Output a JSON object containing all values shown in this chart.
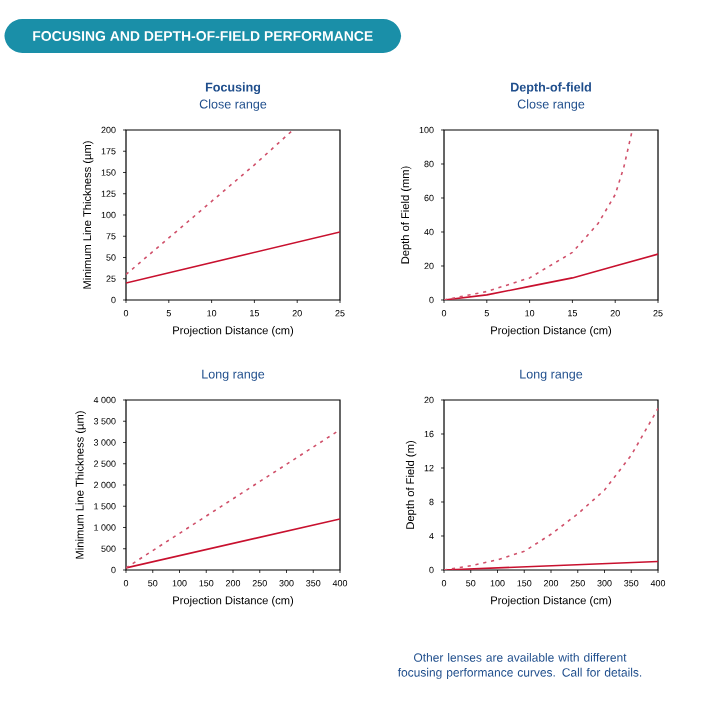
{
  "chart_data": [
    {
      "type": "line",
      "title": "Focusing",
      "subtitle": "Close range",
      "xlabel": "Projection Distance (cm)",
      "ylabel": "Minimum Line Thickness (µm)",
      "annotations": [
        "FOCUSING AND DEPTH-OF-FIELD PERFORMANCE"
      ],
      "xlim": [
        0,
        25
      ],
      "xticks": [
        0,
        5,
        10,
        15,
        20,
        25
      ],
      "ylim": [
        0,
        200
      ],
      "yticks": [
        0,
        25,
        50,
        75,
        100,
        125,
        150,
        175,
        200
      ],
      "series": [
        {
          "color": "#c8102e",
          "line_style": "solid",
          "x": [
            0,
            25
          ],
          "values": [
            20,
            80
          ]
        },
        {
          "color": "#d0506a",
          "line_style": "dashed",
          "x": [
            0,
            5,
            10,
            15,
            19.5
          ],
          "values": [
            30,
            73,
            116,
            159,
            200
          ]
        }
      ]
    },
    {
      "type": "line",
      "title": "Depth-of-field",
      "subtitle": "Close range",
      "xlabel": "Projection Distance (cm)",
      "ylabel": "Depth of Field (mm)",
      "xlim": [
        0,
        25
      ],
      "xticks": [
        0,
        5,
        10,
        15,
        20,
        25
      ],
      "ylim": [
        0,
        100
      ],
      "yticks": [
        0,
        20,
        40,
        60,
        80,
        100
      ],
      "series": [
        {
          "color": "#c8102e",
          "line_style": "solid",
          "x": [
            0,
            5,
            10,
            15,
            20,
            25
          ],
          "values": [
            0,
            3,
            8,
            13,
            20,
            27
          ]
        },
        {
          "color": "#d0506a",
          "line_style": "dashed",
          "x": [
            0,
            5,
            10,
            15,
            18,
            20,
            21,
            22
          ],
          "values": [
            0,
            5,
            13,
            28,
            45,
            62,
            78,
            100
          ]
        }
      ]
    },
    {
      "type": "line",
      "subtitle": "Long range",
      "xlabel": "Projection Distance (cm)",
      "ylabel": "Minimum Line Thickness (µm)",
      "xlim": [
        0,
        400
      ],
      "xticks": [
        0,
        50,
        100,
        150,
        200,
        250,
        300,
        350,
        400
      ],
      "ylim": [
        0,
        4000
      ],
      "yticks": [
        0,
        500,
        {
          "value": 1000,
          "label": "1 000"
        },
        {
          "value": 1500,
          "label": "1 500"
        },
        {
          "value": 2000,
          "label": "2 000"
        },
        {
          "value": 2500,
          "label": "2 500"
        },
        {
          "value": 3000,
          "label": "3 000"
        },
        {
          "value": 3500,
          "label": "3 500"
        },
        {
          "value": 4000,
          "label": "4 000"
        }
      ],
      "series": [
        {
          "color": "#c8102e",
          "line_style": "solid",
          "x": [
            0,
            400
          ],
          "values": [
            50,
            1200
          ]
        },
        {
          "color": "#d0506a",
          "line_style": "dashed",
          "x": [
            0,
            400
          ],
          "values": [
            50,
            3300
          ]
        }
      ]
    },
    {
      "type": "line",
      "subtitle": "Long range",
      "xlabel": "Projection Distance (cm)",
      "ylabel": "Depth of Field (m)",
      "annotations": [
        "Other lenses are available with different focusing performance curves. Call for details."
      ],
      "xlim": [
        0,
        400
      ],
      "xticks": [
        0,
        50,
        100,
        150,
        200,
        250,
        300,
        350,
        400
      ],
      "ylim": [
        0,
        20
      ],
      "yticks": [
        0,
        4,
        8,
        12,
        16,
        20
      ],
      "series": [
        {
          "color": "#c8102e",
          "line_style": "solid",
          "x": [
            0,
            400
          ],
          "values": [
            0,
            1
          ]
        },
        {
          "color": "#d0506a",
          "line_style": "dashed",
          "x": [
            0,
            50,
            100,
            150,
            200,
            250,
            300,
            350,
            400
          ],
          "values": [
            0,
            0.5,
            1.2,
            2.2,
            4.2,
            6.6,
            9.4,
            13.5,
            19
          ]
        }
      ]
    }
  ]
}
